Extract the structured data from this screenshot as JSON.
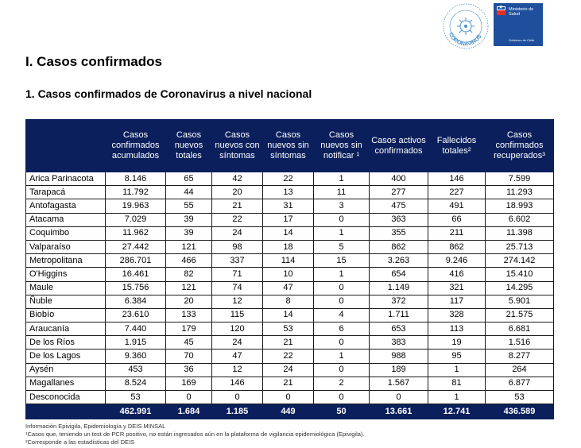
{
  "section_title": "I.  Casos confirmados",
  "subsection_title": "1. Casos confirmados de Coronavirus a nivel nacional",
  "logos": {
    "plan_text": "PLAN DE ACCIÓN CORONAVIRUS COVID-19",
    "ministry_name": "Ministerio de Salud",
    "government": "Gobierno de Chile"
  },
  "table": {
    "headers": [
      "",
      "Casos confirmados acumulados",
      "Casos nuevos totales",
      "Casos nuevos con síntomas",
      "Casos nuevos sin síntomas",
      "Casos nuevos sin notificar ¹",
      "Casos activos confirmados",
      "Fallecidos totales²",
      "Casos confirmados recuperados³"
    ],
    "rows": [
      [
        "Arica Parinacota",
        "8.146",
        "65",
        "42",
        "22",
        "1",
        "400",
        "146",
        "7.599"
      ],
      [
        "Tarapacá",
        "11.792",
        "44",
        "20",
        "13",
        "11",
        "277",
        "227",
        "11.293"
      ],
      [
        "Antofagasta",
        "19.963",
        "55",
        "21",
        "31",
        "3",
        "475",
        "491",
        "18.993"
      ],
      [
        "Atacama",
        "7.029",
        "39",
        "22",
        "17",
        "0",
        "363",
        "66",
        "6.602"
      ],
      [
        "Coquimbo",
        "11.962",
        "39",
        "24",
        "14",
        "1",
        "355",
        "211",
        "11.398"
      ],
      [
        "Valparaíso",
        "27.442",
        "121",
        "98",
        "18",
        "5",
        "862",
        "862",
        "25.713"
      ],
      [
        "Metropolitana",
        "286.701",
        "466",
        "337",
        "114",
        "15",
        "3.263",
        "9.246",
        "274.142"
      ],
      [
        "O'Higgins",
        "16.461",
        "82",
        "71",
        "10",
        "1",
        "654",
        "416",
        "15.410"
      ],
      [
        "Maule",
        "15.756",
        "121",
        "74",
        "47",
        "0",
        "1.149",
        "321",
        "14.295"
      ],
      [
        "Ñuble",
        "6.384",
        "20",
        "12",
        "8",
        "0",
        "372",
        "117",
        "5.901"
      ],
      [
        "Biobío",
        "23.610",
        "133",
        "115",
        "14",
        "4",
        "1.711",
        "328",
        "21.575"
      ],
      [
        "Araucanía",
        "7.440",
        "179",
        "120",
        "53",
        "6",
        "653",
        "113",
        "6.681"
      ],
      [
        "De los Ríos",
        "1.915",
        "45",
        "24",
        "21",
        "0",
        "383",
        "19",
        "1.516"
      ],
      [
        "De los Lagos",
        "9.360",
        "70",
        "47",
        "22",
        "1",
        "988",
        "95",
        "8.277"
      ],
      [
        "Aysén",
        "453",
        "36",
        "12",
        "24",
        "0",
        "189",
        "1",
        "264"
      ],
      [
        "Magallanes",
        "8.524",
        "169",
        "146",
        "21",
        "2",
        "1.567",
        "81",
        "6.877"
      ],
      [
        "Desconocida",
        "53",
        "0",
        "0",
        "0",
        "0",
        "0",
        "1",
        "53"
      ]
    ],
    "totals": [
      "",
      "462.991",
      "1.684",
      "1.185",
      "449",
      "50",
      "13.661",
      "12.741",
      "436.589"
    ]
  },
  "footnotes": [
    "Información Epivigila, Epidemiología y DEIS MINSAL",
    "¹Casos que, teniendo un test de PCR positivo, no están ingresados aún en la plataforma de vigilancia epidemiológica (Epivigila).",
    "²Corresponde a las estadísticas del DEIS"
  ]
}
